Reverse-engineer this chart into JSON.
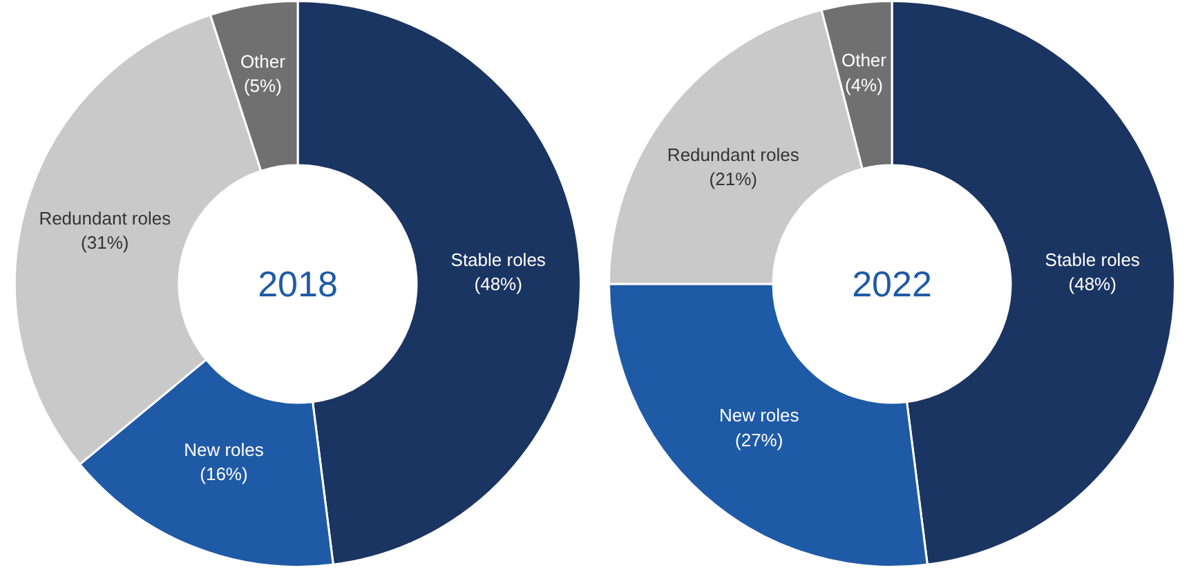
{
  "chart_data": [
    {
      "type": "donut",
      "title": "2018",
      "categories": [
        "Stable roles",
        "New roles",
        "Redundant roles",
        "Other"
      ],
      "values": [
        48,
        16,
        31,
        5
      ],
      "value_labels": [
        "(48%)",
        "(16%)",
        "(31%)",
        "(5%)"
      ],
      "colors": [
        "#1b3562",
        "#1f5aa6",
        "#c9c9c9",
        "#707070"
      ]
    },
    {
      "type": "donut",
      "title": "2022",
      "categories": [
        "Stable roles",
        "New roles",
        "Redundant roles",
        "Other"
      ],
      "values": [
        48,
        27,
        21,
        4
      ],
      "value_labels": [
        "(48%)",
        "(27%)",
        "(21%)",
        "(4%)"
      ],
      "colors": [
        "#1b3562",
        "#1f5aa6",
        "#c9c9c9",
        "#707070"
      ]
    }
  ]
}
